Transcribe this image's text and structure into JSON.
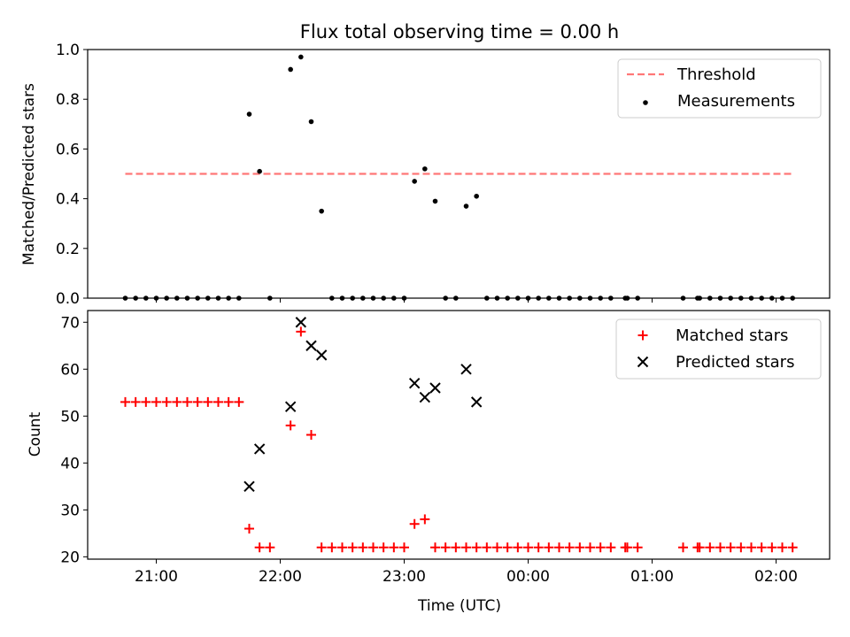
{
  "title": "Flux total observing time = 0.00 h",
  "colors": {
    "threshold": "#ff7777",
    "measurements": "#000000",
    "matched": "#ff0000",
    "predicted": "#000000"
  },
  "chart_data": [
    {
      "type": "scatter",
      "ylabel": "Matched/Predicted stars",
      "xlabel": "",
      "ylim": [
        0.0,
        1.0
      ],
      "x_tick_labels_visible": false,
      "y_ticks": [
        0.0,
        0.2,
        0.4,
        0.6,
        0.8,
        1.0
      ],
      "y_tick_labels": [
        "0.0",
        "0.2",
        "0.4",
        "0.6",
        "0.8",
        "1.0"
      ],
      "legend": {
        "position": "upper right",
        "entries": [
          "Threshold",
          "Measurements"
        ]
      },
      "threshold": {
        "name": "Threshold",
        "value": 0.5,
        "x_start": "20:45",
        "x_end": "02:08"
      },
      "series": [
        {
          "name": "Measurements",
          "points": [
            [
              "20:45",
              0
            ],
            [
              "20:50",
              0
            ],
            [
              "20:55",
              0
            ],
            [
              "21:00",
              0
            ],
            [
              "21:05",
              0
            ],
            [
              "21:10",
              0
            ],
            [
              "21:15",
              0
            ],
            [
              "21:20",
              0
            ],
            [
              "21:25",
              0
            ],
            [
              "21:30",
              0
            ],
            [
              "21:35",
              0
            ],
            [
              "21:40",
              0
            ],
            [
              "21:45",
              0.74
            ],
            [
              "21:50",
              0.51
            ],
            [
              "21:55",
              0
            ],
            [
              "22:05",
              0.92
            ],
            [
              "22:10",
              0.97
            ],
            [
              "22:15",
              0.71
            ],
            [
              "22:20",
              0.35
            ],
            [
              "22:25",
              0
            ],
            [
              "22:30",
              0
            ],
            [
              "22:35",
              0
            ],
            [
              "22:40",
              0
            ],
            [
              "22:45",
              0
            ],
            [
              "22:50",
              0
            ],
            [
              "22:55",
              0
            ],
            [
              "23:00",
              0
            ],
            [
              "23:05",
              0.47
            ],
            [
              "23:10",
              0.52
            ],
            [
              "23:15",
              0.39
            ],
            [
              "23:20",
              0
            ],
            [
              "23:25",
              0
            ],
            [
              "23:30",
              0.37
            ],
            [
              "23:35",
              0.41
            ],
            [
              "23:40",
              0
            ],
            [
              "23:45",
              0
            ],
            [
              "23:50",
              0
            ],
            [
              "23:55",
              0
            ],
            [
              "00:00",
              0
            ],
            [
              "00:05",
              0
            ],
            [
              "00:10",
              0
            ],
            [
              "00:15",
              0
            ],
            [
              "00:20",
              0
            ],
            [
              "00:25",
              0
            ],
            [
              "00:30",
              0
            ],
            [
              "00:35",
              0
            ],
            [
              "00:40",
              0
            ],
            [
              "00:47",
              0
            ],
            [
              "00:48",
              0
            ],
            [
              "00:53",
              0
            ],
            [
              "01:15",
              0
            ],
            [
              "01:22",
              0
            ],
            [
              "01:23",
              0
            ],
            [
              "01:28",
              0
            ],
            [
              "01:33",
              0
            ],
            [
              "01:38",
              0
            ],
            [
              "01:43",
              0
            ],
            [
              "01:48",
              0
            ],
            [
              "01:53",
              0
            ],
            [
              "01:58",
              0
            ],
            [
              "02:03",
              0
            ],
            [
              "02:08",
              0
            ]
          ]
        }
      ]
    },
    {
      "type": "scatter",
      "ylabel": "Count",
      "xlabel": "Time (UTC)",
      "ylim": [
        19.5,
        72.5
      ],
      "y_ticks": [
        20,
        30,
        40,
        50,
        60,
        70
      ],
      "y_tick_labels": [
        "20",
        "30",
        "40",
        "50",
        "60",
        "70"
      ],
      "x_ticks": [
        "21:00",
        "22:00",
        "23:00",
        "00:00",
        "01:00",
        "02:00"
      ],
      "x_tick_labels": [
        "21:00",
        "22:00",
        "23:00",
        "00:00",
        "01:00",
        "02:00"
      ],
      "legend": {
        "position": "upper right",
        "entries": [
          "Matched stars",
          "Predicted stars"
        ]
      },
      "series": [
        {
          "name": "Matched stars",
          "marker": "plus",
          "points": [
            [
              "20:45",
              53
            ],
            [
              "20:50",
              53
            ],
            [
              "20:55",
              53
            ],
            [
              "21:00",
              53
            ],
            [
              "21:05",
              53
            ],
            [
              "21:10",
              53
            ],
            [
              "21:15",
              53
            ],
            [
              "21:20",
              53
            ],
            [
              "21:25",
              53
            ],
            [
              "21:30",
              53
            ],
            [
              "21:35",
              53
            ],
            [
              "21:40",
              53
            ],
            [
              "21:45",
              26
            ],
            [
              "21:50",
              22
            ],
            [
              "21:55",
              22
            ],
            [
              "22:05",
              48
            ],
            [
              "22:10",
              68
            ],
            [
              "22:15",
              46
            ],
            [
              "22:20",
              22
            ],
            [
              "22:25",
              22
            ],
            [
              "22:30",
              22
            ],
            [
              "22:35",
              22
            ],
            [
              "22:40",
              22
            ],
            [
              "22:45",
              22
            ],
            [
              "22:50",
              22
            ],
            [
              "22:55",
              22
            ],
            [
              "23:00",
              22
            ],
            [
              "23:05",
              27
            ],
            [
              "23:10",
              28
            ],
            [
              "23:15",
              22
            ],
            [
              "23:20",
              22
            ],
            [
              "23:25",
              22
            ],
            [
              "23:30",
              22
            ],
            [
              "23:35",
              22
            ],
            [
              "23:40",
              22
            ],
            [
              "23:45",
              22
            ],
            [
              "23:50",
              22
            ],
            [
              "23:55",
              22
            ],
            [
              "00:00",
              22
            ],
            [
              "00:05",
              22
            ],
            [
              "00:10",
              22
            ],
            [
              "00:15",
              22
            ],
            [
              "00:20",
              22
            ],
            [
              "00:25",
              22
            ],
            [
              "00:30",
              22
            ],
            [
              "00:35",
              22
            ],
            [
              "00:40",
              22
            ],
            [
              "00:47",
              22
            ],
            [
              "00:48",
              22
            ],
            [
              "00:53",
              22
            ],
            [
              "01:15",
              22
            ],
            [
              "01:22",
              22
            ],
            [
              "01:23",
              22
            ],
            [
              "01:28",
              22
            ],
            [
              "01:33",
              22
            ],
            [
              "01:38",
              22
            ],
            [
              "01:43",
              22
            ],
            [
              "01:48",
              22
            ],
            [
              "01:53",
              22
            ],
            [
              "01:58",
              22
            ],
            [
              "02:03",
              22
            ],
            [
              "02:08",
              22
            ]
          ]
        },
        {
          "name": "Predicted stars",
          "marker": "cross",
          "points": [
            [
              "21:45",
              35
            ],
            [
              "21:50",
              43
            ],
            [
              "22:05",
              52
            ],
            [
              "22:10",
              70
            ],
            [
              "22:15",
              65
            ],
            [
              "22:20",
              63
            ],
            [
              "23:05",
              57
            ],
            [
              "23:10",
              54
            ],
            [
              "23:15",
              56
            ],
            [
              "23:30",
              60
            ],
            [
              "23:35",
              53
            ]
          ]
        }
      ]
    }
  ]
}
